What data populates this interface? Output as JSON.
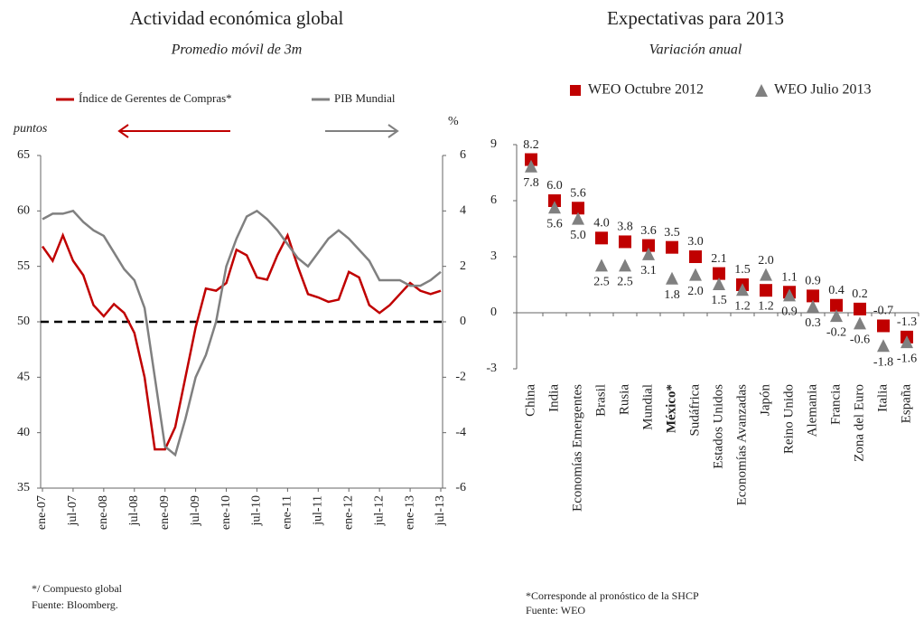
{
  "chart_data": [
    {
      "type": "line",
      "title": "Actividad económica global",
      "subtitle": "Promedio móvil de 3m",
      "ylabel": "puntos",
      "y2label": "%",
      "categories": [
        "ene-07",
        null,
        null,
        "jul-07",
        null,
        null,
        "ene-08",
        null,
        null,
        "jul-08",
        null,
        null,
        "ene-09",
        null,
        null,
        "jul-09",
        null,
        null,
        "ene-10",
        null,
        null,
        "jul-10",
        null,
        null,
        "ene-11",
        null,
        null,
        "jul-11",
        null,
        null,
        "ene-12",
        null,
        null,
        "jul-12",
        null,
        null,
        "ene-13",
        null,
        null,
        "jul-13"
      ],
      "series": [
        {
          "name": "Índice de Gerentes de Compras*",
          "color": "#c00000",
          "values": [
            56.8,
            55.5,
            57.8,
            55.5,
            54.2,
            51.5,
            50.5,
            51.6,
            50.8,
            49,
            45,
            38.5,
            38.5,
            40.5,
            45,
            49.5,
            53,
            52.8,
            53.5,
            56.5,
            56,
            54,
            53.8,
            56,
            57.8,
            55,
            52.5,
            52.2,
            51.8,
            52,
            54.5,
            54,
            51.5,
            50.8,
            51.5,
            52.5,
            53.5,
            52.8,
            52.5,
            52.8
          ]
        },
        {
          "name": "PIB Mundial",
          "color": "#808080",
          "axis": "y2",
          "values": [
            3.7,
            3.9,
            3.9,
            4.0,
            3.6,
            3.3,
            3.1,
            2.5,
            1.9,
            1.5,
            0.5,
            -2.0,
            -4.5,
            -4.8,
            -3.5,
            -2.0,
            -1.2,
            0.0,
            2.0,
            3.0,
            3.8,
            4.0,
            3.7,
            3.3,
            2.8,
            2.3,
            2.0,
            2.5,
            3.0,
            3.3,
            3.0,
            2.6,
            2.2,
            1.5,
            1.5,
            1.5,
            1.3,
            1.3,
            1.5,
            1.8
          ]
        }
      ],
      "ylim": [
        35,
        65
      ],
      "yticks": [
        35,
        40,
        45,
        50,
        55,
        60,
        65
      ],
      "y2lim": [
        -6,
        6
      ],
      "y2ticks": [
        -6,
        -4,
        -2,
        0,
        2,
        4,
        6
      ],
      "hline": 50,
      "notes": [
        "*/ Compuesto global",
        "Fuente: Bloomberg."
      ]
    },
    {
      "type": "dot",
      "title": "Expectativas para 2013",
      "subtitle": "Variación anual",
      "categories": [
        "China",
        "India",
        "Economías Emergentes",
        "Brasil",
        "Rusia",
        "Mundial",
        "México*",
        "Sudáfrica",
        "Estados Unidos",
        "Economías Avanzadas",
        "Japón",
        "Reino Unido",
        "Alemania",
        "Francia",
        "Zona del Euro",
        "Italia",
        "España"
      ],
      "series": [
        {
          "name": "WEO Octubre 2012",
          "color": "#c00000",
          "marker": "square",
          "values": [
            8.2,
            6.0,
            5.6,
            4.0,
            3.8,
            3.6,
            3.5,
            3.0,
            2.1,
            1.5,
            1.2,
            1.1,
            0.9,
            0.4,
            0.2,
            -0.7,
            -1.3
          ],
          "value_labels": [
            "8.2",
            "6.0",
            "5.6",
            "4.0",
            "3.8",
            "3.6",
            "3.5",
            "3.0",
            "2.1",
            "1.5",
            "1.2",
            "1.1",
            "0.9",
            "0.4",
            "0.2",
            "-0.7",
            "-1.3"
          ]
        },
        {
          "name": "WEO Julio 2013",
          "color": "#808080",
          "marker": "triangle",
          "values": [
            7.8,
            5.6,
            5.0,
            2.5,
            2.5,
            3.1,
            1.8,
            2.0,
            1.5,
            1.2,
            2.0,
            0.9,
            0.3,
            -0.2,
            -0.6,
            -1.8,
            -1.6
          ],
          "value_labels": [
            "7.8",
            "5.6",
            "5.0",
            "2.5",
            "2.5",
            "3.1",
            "1.8",
            "2.0",
            "1.5",
            "1.2",
            "2.0",
            "0.9",
            "0.3",
            "-0.2",
            "-0.6",
            "-1.8",
            "-1.6"
          ]
        }
      ],
      "ylim": [
        -3,
        9
      ],
      "yticks": [
        -3,
        0,
        3,
        6,
        9
      ],
      "notes": [
        "*Corresponde al pronóstico de la SHCP",
        "Fuente: WEO"
      ]
    }
  ]
}
